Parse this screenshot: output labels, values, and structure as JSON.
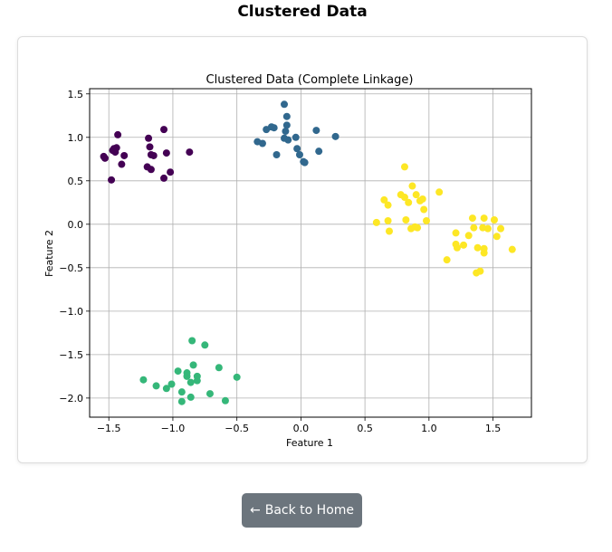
{
  "page": {
    "title": "Clustered Data"
  },
  "nav": {
    "back_arrow": "←",
    "back_label": "Back to Home"
  },
  "chart_data": {
    "type": "scatter",
    "title": "Clustered Data (Complete Linkage)",
    "xlabel": "Feature 1",
    "ylabel": "Feature 2",
    "xlim": [
      -1.65,
      1.8
    ],
    "ylim": [
      -2.22,
      1.56
    ],
    "xticks": [
      -1.5,
      -1.0,
      -0.5,
      0.0,
      0.5,
      1.0,
      1.5
    ],
    "xtick_labels": [
      "−1.5",
      "−1.0",
      "−0.5",
      "0.0",
      "0.5",
      "1.0",
      "1.5"
    ],
    "yticks": [
      1.5,
      1.0,
      0.5,
      0.0,
      -0.5,
      -1.0,
      -1.5,
      -2.0
    ],
    "ytick_labels": [
      "1.5",
      "1.0",
      "0.5",
      "0.0",
      "−0.5",
      "−1.0",
      "−1.5",
      "−2.0"
    ],
    "grid": true,
    "series": [
      {
        "color": "#440154",
        "points": [
          [
            -1.54,
            0.78
          ],
          [
            -1.53,
            0.76
          ],
          [
            -1.47,
            0.85
          ],
          [
            -1.45,
            0.83
          ],
          [
            -1.44,
            0.88
          ],
          [
            -1.43,
            1.03
          ],
          [
            -1.4,
            0.69
          ],
          [
            -1.38,
            0.79
          ],
          [
            -1.48,
            0.51
          ],
          [
            -1.19,
            0.99
          ],
          [
            -1.18,
            0.89
          ],
          [
            -1.17,
            0.8
          ],
          [
            -1.15,
            0.79
          ],
          [
            -1.17,
            0.63
          ],
          [
            -1.2,
            0.66
          ],
          [
            -1.07,
            1.09
          ],
          [
            -1.05,
            0.82
          ],
          [
            -1.07,
            0.53
          ],
          [
            -1.02,
            0.6
          ],
          [
            -0.87,
            0.83
          ],
          [
            -1.46,
            0.87
          ]
        ]
      },
      {
        "color": "#31688e",
        "points": [
          [
            -0.34,
            0.95
          ],
          [
            -0.3,
            0.93
          ],
          [
            -0.27,
            1.09
          ],
          [
            -0.23,
            1.12
          ],
          [
            -0.21,
            1.11
          ],
          [
            -0.19,
            0.8
          ],
          [
            -0.13,
            1.38
          ],
          [
            -0.11,
            1.24
          ],
          [
            -0.11,
            1.14
          ],
          [
            -0.12,
            1.07
          ],
          [
            -0.13,
            0.99
          ],
          [
            -0.1,
            0.97
          ],
          [
            -0.04,
            1.0
          ],
          [
            -0.03,
            0.87
          ],
          [
            -0.01,
            0.8
          ],
          [
            0.02,
            0.72
          ],
          [
            0.03,
            0.71
          ],
          [
            0.12,
            1.08
          ],
          [
            0.14,
            0.84
          ],
          [
            0.27,
            1.01
          ]
        ]
      },
      {
        "color": "#35b779",
        "points": [
          [
            -1.23,
            -1.79
          ],
          [
            -1.13,
            -1.86
          ],
          [
            -1.05,
            -1.89
          ],
          [
            -1.01,
            -1.84
          ],
          [
            -0.96,
            -1.69
          ],
          [
            -0.93,
            -1.93
          ],
          [
            -0.93,
            -2.04
          ],
          [
            -0.89,
            -1.75
          ],
          [
            -0.89,
            -1.71
          ],
          [
            -0.86,
            -1.82
          ],
          [
            -0.86,
            -1.99
          ],
          [
            -0.85,
            -1.34
          ],
          [
            -0.84,
            -1.62
          ],
          [
            -0.81,
            -1.75
          ],
          [
            -0.81,
            -1.8
          ],
          [
            -0.75,
            -1.39
          ],
          [
            -0.71,
            -1.95
          ],
          [
            -0.64,
            -1.65
          ],
          [
            -0.59,
            -2.03
          ],
          [
            -0.5,
            -1.76
          ]
        ]
      },
      {
        "color": "#fde725",
        "points": [
          [
            0.59,
            0.02
          ],
          [
            0.65,
            0.28
          ],
          [
            0.68,
            0.22
          ],
          [
            0.68,
            0.04
          ],
          [
            0.69,
            -0.08
          ],
          [
            0.78,
            0.34
          ],
          [
            0.81,
            0.31
          ],
          [
            0.81,
            0.66
          ],
          [
            0.82,
            0.05
          ],
          [
            0.84,
            0.25
          ],
          [
            0.87,
            0.44
          ],
          [
            0.86,
            -0.05
          ],
          [
            0.89,
            -0.03
          ],
          [
            0.9,
            0.34
          ],
          [
            0.91,
            -0.04
          ],
          [
            0.93,
            0.27
          ],
          [
            0.95,
            0.29
          ],
          [
            0.96,
            0.17
          ],
          [
            0.98,
            0.04
          ],
          [
            1.08,
            0.37
          ],
          [
            1.14,
            -0.41
          ],
          [
            1.21,
            -0.23
          ],
          [
            1.21,
            -0.1
          ],
          [
            1.27,
            -0.24
          ],
          [
            1.31,
            -0.13
          ],
          [
            1.34,
            0.07
          ],
          [
            1.35,
            -0.04
          ],
          [
            1.37,
            -0.56
          ],
          [
            1.38,
            -0.27
          ],
          [
            1.4,
            -0.54
          ],
          [
            1.42,
            -0.04
          ],
          [
            1.43,
            0.07
          ],
          [
            1.43,
            -0.28
          ],
          [
            1.43,
            -0.33
          ],
          [
            1.46,
            -0.05
          ],
          [
            1.51,
            0.05
          ],
          [
            1.53,
            -0.14
          ],
          [
            1.56,
            -0.05
          ],
          [
            1.65,
            -0.29
          ],
          [
            1.22,
            -0.27
          ]
        ]
      }
    ]
  }
}
